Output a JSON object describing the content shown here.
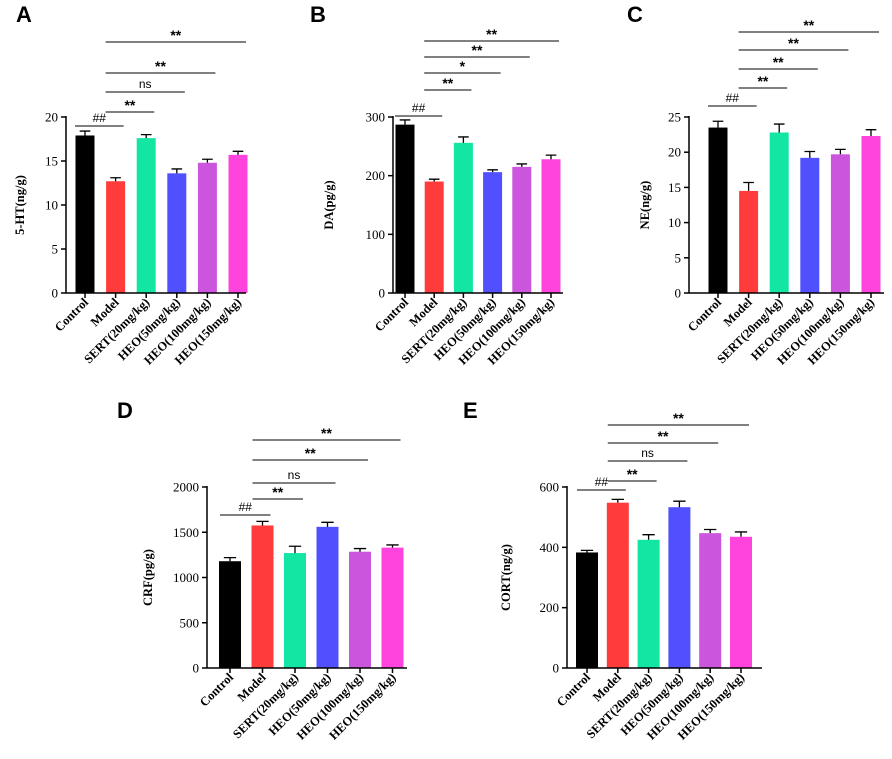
{
  "colors": {
    "Control": "#000000",
    "Model": "#ff3b3b",
    "SERT(20mg/kg)": "#12e6a2",
    "HEO(50mg/kg)": "#5050ff",
    "HEO(100mg/kg)": "#cc55dd",
    "HEO(150mg/kg)": "#ff44dd"
  },
  "chart_data": [
    {
      "type": "bar",
      "panel": "A",
      "ylabel": "5-HT(ng/g)",
      "ylim": [
        0,
        20
      ],
      "yticks": [
        0,
        5,
        10,
        15,
        20
      ],
      "categories": [
        "Control",
        "Model",
        "SERT(20mg/kg)",
        "HEO(50mg/kg)",
        "HEO(100mg/kg)",
        "HEO(150mg/kg)"
      ],
      "values": [
        17.9,
        12.7,
        17.6,
        13.6,
        14.8,
        15.7
      ],
      "errors": [
        0.5,
        0.4,
        0.4,
        0.5,
        0.4,
        0.4
      ],
      "significance": [
        {
          "from": 0,
          "to": 1,
          "label": "##"
        },
        {
          "from": 1,
          "to": 2,
          "label": "**"
        },
        {
          "from": 1,
          "to": 3,
          "label": "ns"
        },
        {
          "from": 1,
          "to": 4,
          "label": "**"
        },
        {
          "from": 1,
          "to": 5,
          "label": "**"
        }
      ]
    },
    {
      "type": "bar",
      "panel": "B",
      "ylabel": "DA(pg/g)",
      "ylim": [
        0,
        300
      ],
      "yticks": [
        0,
        100,
        200,
        300
      ],
      "categories": [
        "Control",
        "Model",
        "SERT(20mg/kg)",
        "HEO(50mg/kg)",
        "HEO(100mg/kg)",
        "HEO(150mg/kg)"
      ],
      "values": [
        287,
        190,
        256,
        206,
        215,
        228
      ],
      "errors": [
        8,
        4,
        10,
        4,
        5,
        7
      ],
      "significance": [
        {
          "from": 0,
          "to": 1,
          "label": "##"
        },
        {
          "from": 1,
          "to": 2,
          "label": "**"
        },
        {
          "from": 1,
          "to": 3,
          "label": "*"
        },
        {
          "from": 1,
          "to": 4,
          "label": "**"
        },
        {
          "from": 1,
          "to": 5,
          "label": "**"
        }
      ]
    },
    {
      "type": "bar",
      "panel": "C",
      "ylabel": "NE(ng/g)",
      "ylim": [
        0,
        25
      ],
      "yticks": [
        0,
        5,
        10,
        15,
        20,
        25
      ],
      "categories": [
        "Control",
        "Model",
        "SERT(20mg/kg)",
        "HEO(50mg/kg)",
        "HEO(100mg/kg)",
        "HEO(150mg/kg)"
      ],
      "values": [
        23.5,
        14.5,
        22.8,
        19.2,
        19.7,
        22.3
      ],
      "errors": [
        0.9,
        1.2,
        1.2,
        0.9,
        0.7,
        0.9
      ],
      "significance": [
        {
          "from": 0,
          "to": 1,
          "label": "##"
        },
        {
          "from": 1,
          "to": 2,
          "label": "**"
        },
        {
          "from": 1,
          "to": 3,
          "label": "**"
        },
        {
          "from": 1,
          "to": 4,
          "label": "**"
        },
        {
          "from": 1,
          "to": 5,
          "label": "**"
        }
      ]
    },
    {
      "type": "bar",
      "panel": "D",
      "ylabel": "CRF(pg/g)",
      "ylim": [
        0,
        2000
      ],
      "yticks": [
        0,
        500,
        1000,
        1500,
        2000
      ],
      "categories": [
        "Control",
        "Model",
        "SERT(20mg/kg)",
        "HEO(50mg/kg)",
        "HEO(100mg/kg)",
        "HEO(150mg/kg)"
      ],
      "values": [
        1180,
        1575,
        1270,
        1560,
        1285,
        1330
      ],
      "errors": [
        40,
        45,
        75,
        50,
        35,
        30
      ],
      "significance": [
        {
          "from": 0,
          "to": 1,
          "label": "##"
        },
        {
          "from": 1,
          "to": 2,
          "label": "**"
        },
        {
          "from": 1,
          "to": 3,
          "label": "ns"
        },
        {
          "from": 1,
          "to": 4,
          "label": "**"
        },
        {
          "from": 1,
          "to": 5,
          "label": "**"
        }
      ]
    },
    {
      "type": "bar",
      "panel": "E",
      "ylabel": "CORT(ng/g)",
      "ylim": [
        0,
        600
      ],
      "yticks": [
        0,
        200,
        400,
        600
      ],
      "categories": [
        "Control",
        "Model",
        "SERT(20mg/kg)",
        "HEO(50mg/kg)",
        "HEO(100mg/kg)",
        "HEO(150mg/kg)"
      ],
      "values": [
        383,
        548,
        425,
        533,
        447,
        435
      ],
      "errors": [
        7,
        11,
        17,
        20,
        12,
        16
      ],
      "significance": [
        {
          "from": 0,
          "to": 1,
          "label": "##"
        },
        {
          "from": 1,
          "to": 2,
          "label": "**"
        },
        {
          "from": 1,
          "to": 3,
          "label": "ns"
        },
        {
          "from": 1,
          "to": 4,
          "label": "**"
        },
        {
          "from": 1,
          "to": 5,
          "label": "**"
        }
      ]
    }
  ]
}
